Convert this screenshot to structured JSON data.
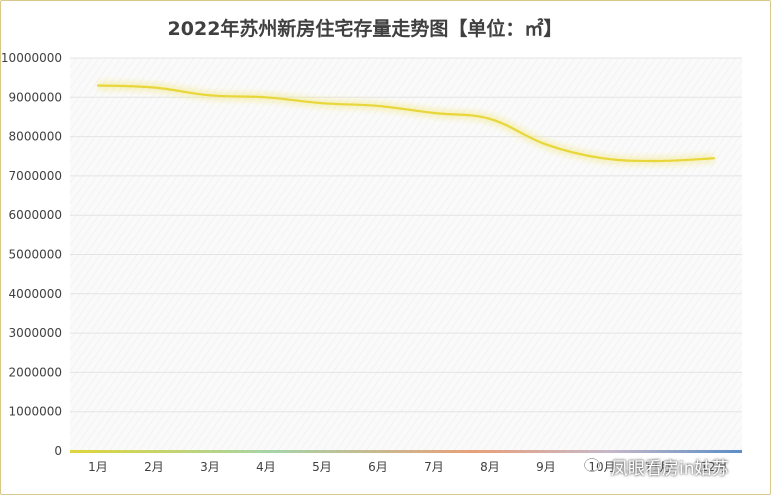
{
  "chart_data": {
    "type": "line",
    "title": "2022年苏州新房住宅存量走势图【单位：㎡】",
    "xlabel": "",
    "ylabel": "",
    "categories": [
      "1月",
      "2月",
      "3月",
      "4月",
      "5月",
      "6月",
      "7月",
      "8月",
      "9月",
      "10月",
      "11月",
      "12月"
    ],
    "series": [
      {
        "values": [
          9300000,
          9250000,
          9050000,
          9000000,
          8850000,
          8780000,
          8600000,
          8450000,
          7800000,
          7450000,
          7380000,
          7450000
        ]
      }
    ],
    "ylim": [
      0,
      10000000
    ],
    "yticks": [
      0,
      1000000,
      2000000,
      3000000,
      4000000,
      5000000,
      6000000,
      7000000,
      8000000,
      9000000,
      10000000
    ],
    "ytick_labels": [
      "0",
      "1000000",
      "2000000",
      "3000000",
      "4000000",
      "5000000",
      "6000000",
      "7000000",
      "8000000",
      "9000000",
      "10000000"
    ],
    "grid": true,
    "line_color": "#e8d73a"
  },
  "watermark": {
    "icon": "wechat-icon",
    "text": "凤眼看房in姑苏"
  }
}
